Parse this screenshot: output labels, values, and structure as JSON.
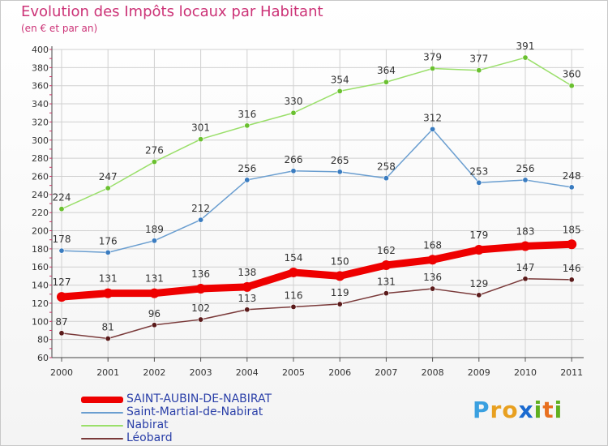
{
  "header": {
    "title": "Evolution des Impôts locaux par Habitant",
    "subtitle": "(en € et par an)"
  },
  "logo": {
    "letters": [
      "P",
      "r",
      "o",
      "x",
      "i",
      "t",
      "i"
    ],
    "colors": [
      "#3aa0e0",
      "#e8a020",
      "#e8a020",
      "#1a6ad0",
      "#60b020",
      "#e87020",
      "#60b020"
    ]
  },
  "chart_data": {
    "type": "line",
    "title": "Evolution des Impôts locaux par Habitant",
    "ylabel": "(en € et par an)",
    "xlabel": "",
    "categories": [
      "2000",
      "2001",
      "2002",
      "2003",
      "2004",
      "2005",
      "2006",
      "2007",
      "2008",
      "2009",
      "2010",
      "2011"
    ],
    "ylim": [
      60,
      400
    ],
    "yticks": [
      "60",
      "80",
      "100",
      "120",
      "140",
      "160",
      "180",
      "200",
      "220",
      "240",
      "260",
      "280",
      "300",
      "320",
      "340",
      "360",
      "380",
      "400"
    ],
    "grid": true,
    "legend_position": "bottom-left",
    "series": [
      {
        "name": "SAINT-AUBIN-DE-NABIRAT",
        "color": "#ee0000",
        "marker": "#ee0000",
        "emphasis": true,
        "values": [
          127,
          131,
          131,
          136,
          138,
          154,
          150,
          162,
          168,
          179,
          183,
          185
        ]
      },
      {
        "name": "Saint-Martial-de-Nabirat",
        "color": "#6a9ed0",
        "marker": "#3a7cc0",
        "emphasis": false,
        "values": [
          178,
          176,
          189,
          212,
          256,
          266,
          265,
          258,
          312,
          253,
          256,
          248
        ]
      },
      {
        "name": "Nabirat",
        "color": "#9adf6a",
        "marker": "#6ac030",
        "emphasis": false,
        "values": [
          224,
          247,
          276,
          301,
          316,
          330,
          354,
          364,
          379,
          377,
          391,
          360
        ]
      },
      {
        "name": "Léobard",
        "color": "#7a3a3a",
        "marker": "#5a1a1a",
        "emphasis": false,
        "values": [
          87,
          81,
          96,
          102,
          113,
          116,
          119,
          131,
          136,
          129,
          147,
          146
        ]
      }
    ],
    "labels": [
      {
        "series": "SAINT-AUBIN-DE-NABIRAT",
        "text": [
          "127",
          "131",
          "131",
          "136",
          "138",
          "154",
          "150",
          "162",
          "168",
          "179",
          "183",
          "185"
        ]
      },
      {
        "series": "Saint-Martial-de-Nabirat",
        "text": [
          "178",
          "176",
          "189",
          "212",
          "256",
          "266",
          "265",
          "258",
          "312",
          "253",
          "256",
          "248"
        ]
      },
      {
        "series": "Nabirat",
        "text": [
          "224",
          "247",
          "276",
          "301",
          "316",
          "330",
          "354",
          "364",
          "379",
          "377",
          "391",
          "360"
        ]
      },
      {
        "series": "Léobard",
        "text": [
          "87",
          "81",
          "96",
          "102",
          "113",
          "116",
          "119",
          "131",
          "136",
          "129",
          "147",
          "146"
        ]
      }
    ]
  }
}
